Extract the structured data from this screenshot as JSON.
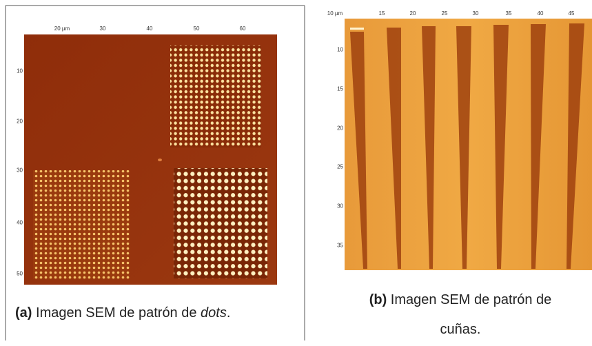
{
  "panel_a": {
    "x_ticks": [
      "20 µm",
      "30",
      "40",
      "50",
      "60"
    ],
    "y_ticks": [
      "10",
      "20",
      "30",
      "40",
      "50"
    ],
    "caption": {
      "label": "(a)",
      "text": " Imagen SEM de patrón de ",
      "emphasis": "dots",
      "end": "."
    }
  },
  "panel_b": {
    "x_ticks": [
      "10 µm",
      "15",
      "20",
      "25",
      "30",
      "35",
      "40",
      "45"
    ],
    "y_ticks": [
      "10",
      "15",
      "20",
      "25",
      "30",
      "35"
    ],
    "caption": {
      "label": "(b)",
      "line1": " Imagen SEM de patrón de",
      "line2": "cuñas."
    }
  }
}
